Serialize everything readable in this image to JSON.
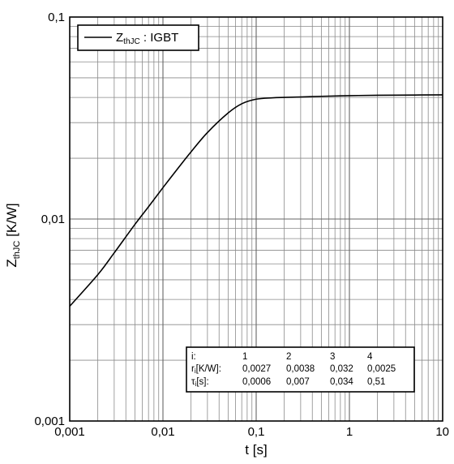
{
  "chart_data": {
    "type": "line",
    "xscale": "log",
    "yscale": "log",
    "xlim": [
      0.001,
      10
    ],
    "ylim": [
      0.001,
      0.1
    ],
    "grid": true,
    "xlabel": "t [s]",
    "ylabel_main": "Z",
    "ylabel_sub": "thJC",
    "ylabel_rest": " [K/W]",
    "x_tick_labels": [
      "0,001",
      "0,01",
      "0,1",
      "1",
      "10"
    ],
    "y_tick_labels": [
      "0,001",
      "0,01",
      "0,1"
    ],
    "legend": {
      "placement": "top-left",
      "main": "Z",
      "sub": "thJC",
      "rest": " : IGBT"
    },
    "series": [
      {
        "x": [
          0.001,
          0.002,
          0.003,
          0.005,
          0.007,
          0.01,
          0.015,
          0.02,
          0.03,
          0.05,
          0.07,
          0.1,
          0.15,
          0.2,
          0.3,
          0.5,
          1,
          2,
          5,
          10
        ],
        "y": [
          0.0037,
          0.0053,
          0.0068,
          0.0094,
          0.0115,
          0.0143,
          0.0182,
          0.0215,
          0.0268,
          0.0335,
          0.0372,
          0.0392,
          0.0398,
          0.04,
          0.0402,
          0.0405,
          0.0408,
          0.041,
          0.0411,
          0.0412
        ]
      }
    ],
    "parameter_table": {
      "headers": [
        "i:",
        "1",
        "2",
        "3",
        "4"
      ],
      "rows": [
        {
          "label_main": "r",
          "label_sub": "i",
          "label_rest": "[K/W]:",
          "values": [
            "0,0027",
            "0,0038",
            "0,032",
            "0,0025"
          ]
        },
        {
          "label_main": "τ",
          "label_sub": "i",
          "label_rest": "[s]:",
          "values": [
            "0,0006",
            "0,007",
            "0,034",
            "0,51"
          ]
        }
      ]
    }
  }
}
